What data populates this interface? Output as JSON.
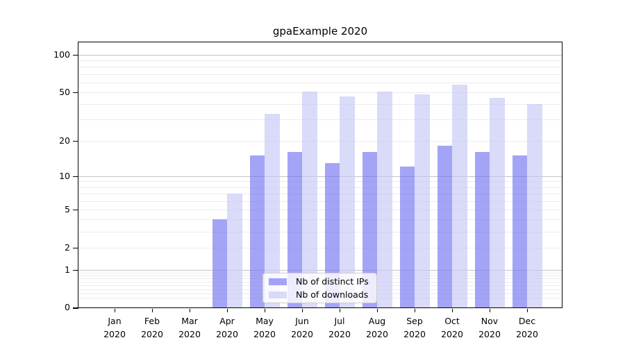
{
  "chart_data": {
    "type": "bar",
    "title": "gpaExample 2020",
    "categories": [
      "Jan",
      "Feb",
      "Mar",
      "Apr",
      "May",
      "Jun",
      "Jul",
      "Aug",
      "Sep",
      "Oct",
      "Nov",
      "Dec"
    ],
    "x_year_label": "2020",
    "series": [
      {
        "name": "Nb of distinct IPs",
        "color": "#7373f3",
        "alpha": 0.65,
        "values": [
          0,
          0,
          0,
          4,
          15,
          16,
          13,
          16,
          12,
          18,
          16,
          15
        ]
      },
      {
        "name": "Nb of downloads",
        "color": "#c6c6f6",
        "alpha": 0.65,
        "values": [
          0,
          0,
          0,
          7,
          33,
          50,
          46,
          50,
          48,
          57,
          45,
          40
        ]
      }
    ],
    "y_scale": "log(1+v)",
    "y_ticks": [
      0,
      1,
      2,
      5,
      10,
      20,
      50,
      100
    ],
    "ylim": [
      0,
      125
    ],
    "grid": "horizontal major (1,10,100) + minor, on",
    "legend_position": "bottom-center inside plot",
    "colors": {
      "background": "#ffffff",
      "spine": "#000000",
      "grid_major": "#c3c3c3",
      "grid_minor": "#ececec",
      "text": "#000000"
    }
  }
}
